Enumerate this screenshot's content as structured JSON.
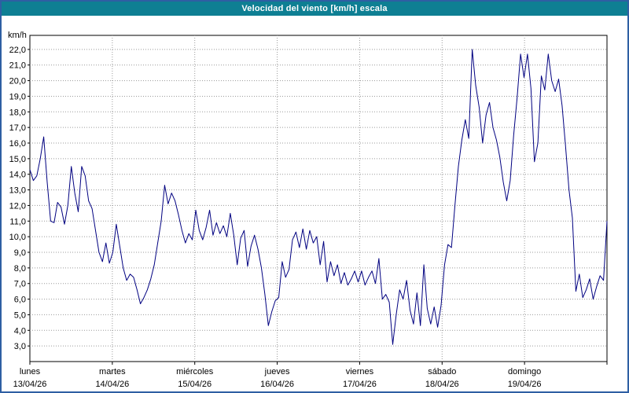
{
  "window": {
    "title": "Velocidad del viento [km/h] escala"
  },
  "colors": {
    "title_bar": "#0e7f93",
    "title_text": "#ffffff",
    "outer_border": "#2e5fa3",
    "line": "#000080",
    "grid": "#9a9a9a",
    "plot_border": "#000000",
    "background": "#ffffff"
  },
  "chart_data": {
    "type": "line",
    "title": "Velocidad del viento [km/h] escala",
    "ylabel": "km/h",
    "xlabel": "",
    "legend": "none",
    "grid": "dotted",
    "ylim": [
      2.0,
      22.9
    ],
    "value_range": [
      2.0,
      22.9
    ],
    "y_ticks": [
      {
        "value": 22,
        "label": "22,0"
      },
      {
        "value": 21,
        "label": "21,0"
      },
      {
        "value": 20,
        "label": "20,0"
      },
      {
        "value": 19,
        "label": "19,0"
      },
      {
        "value": 18,
        "label": "18,0"
      },
      {
        "value": 17,
        "label": "17,0"
      },
      {
        "value": 16,
        "label": "16,0"
      },
      {
        "value": 15,
        "label": "15,0"
      },
      {
        "value": 14,
        "label": "14,0"
      },
      {
        "value": 13,
        "label": "13,0"
      },
      {
        "value": 12,
        "label": "12,0"
      },
      {
        "value": 11,
        "label": "11,0"
      },
      {
        "value": 10,
        "label": "10,0"
      },
      {
        "value": 9,
        "label": "9,0"
      },
      {
        "value": 8,
        "label": "8,0"
      },
      {
        "value": 7,
        "label": "7,0"
      },
      {
        "value": 6,
        "label": "6,0"
      },
      {
        "value": 5,
        "label": "5,0"
      },
      {
        "value": 4,
        "label": "4,0"
      },
      {
        "value": 3,
        "label": "3,0"
      }
    ],
    "days": [
      {
        "name": "lunes",
        "date": "13/04/26"
      },
      {
        "name": "martes",
        "date": "14/04/26"
      },
      {
        "name": "miércoles",
        "date": "15/04/26"
      },
      {
        "name": "jueves",
        "date": "16/04/26"
      },
      {
        "name": "viernes",
        "date": "17/04/26"
      },
      {
        "name": "sábado",
        "date": "18/04/26"
      },
      {
        "name": "domingo",
        "date": "19/04/26"
      }
    ],
    "series_name": "Velocidad del viento (km/h)",
    "sampling": "hourly",
    "values": [
      14.3,
      13.6,
      13.9,
      15.0,
      16.4,
      13.5,
      11.0,
      10.9,
      12.2,
      11.9,
      10.8,
      12.0,
      14.5,
      12.8,
      11.6,
      14.5,
      13.9,
      12.3,
      11.8,
      10.4,
      9.0,
      8.4,
      9.6,
      8.3,
      9.0,
      10.8,
      9.4,
      8.0,
      7.2,
      7.6,
      7.4,
      6.6,
      5.7,
      6.1,
      6.6,
      7.3,
      8.2,
      9.6,
      11.0,
      13.3,
      12.1,
      12.8,
      12.3,
      11.4,
      10.4,
      9.6,
      10.2,
      9.8,
      11.7,
      10.4,
      9.8,
      10.6,
      11.7,
      10.1,
      10.9,
      10.2,
      10.7,
      10.0,
      11.5,
      10.1,
      8.2,
      9.9,
      10.4,
      8.1,
      9.4,
      10.1,
      9.2,
      8.0,
      6.3,
      4.3,
      5.2,
      5.9,
      6.1,
      8.4,
      7.4,
      7.9,
      9.8,
      10.3,
      9.3,
      10.5,
      9.2,
      10.4,
      9.6,
      10.0,
      8.2,
      9.7,
      7.1,
      8.4,
      7.5,
      8.2,
      7.0,
      7.7,
      6.9,
      7.3,
      7.8,
      7.1,
      7.8,
      6.9,
      7.4,
      7.8,
      7.0,
      8.6,
      6.0,
      6.3,
      5.8,
      3.1,
      5.0,
      6.6,
      6.0,
      7.2,
      5.3,
      4.4,
      6.4,
      4.3,
      8.2,
      5.4,
      4.4,
      5.5,
      4.2,
      5.6,
      8.2,
      9.5,
      9.3,
      12.0,
      14.5,
      16.2,
      17.5,
      16.3,
      22.0,
      19.7,
      18.3,
      16.0,
      17.8,
      18.6,
      17.0,
      16.2,
      15.1,
      13.5,
      12.3,
      13.6,
      16.5,
      18.9,
      21.7,
      20.2,
      21.7,
      19.5,
      14.8,
      16.0,
      20.3,
      19.4,
      21.7,
      20.0,
      19.3,
      20.1,
      18.4,
      15.8,
      13.0,
      11.2,
      6.5,
      7.6,
      6.1,
      6.6,
      7.3,
      6.0,
      6.8,
      7.5,
      7.2,
      11.0
    ]
  }
}
